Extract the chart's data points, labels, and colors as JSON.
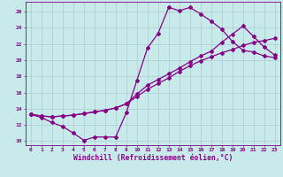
{
  "background_color": "#c8eaea",
  "grid_color": "#aacccc",
  "line_color": "#880088",
  "marker": "D",
  "markersize": 2.0,
  "linewidth": 0.9,
  "xlabel": "Windchill (Refroidissement éolien,°C)",
  "xlim": [
    -0.5,
    23.5
  ],
  "ylim": [
    9.5,
    27.2
  ],
  "xticks": [
    0,
    1,
    2,
    3,
    4,
    5,
    6,
    7,
    8,
    9,
    10,
    11,
    12,
    13,
    14,
    15,
    16,
    17,
    18,
    19,
    20,
    21,
    22,
    23
  ],
  "yticks": [
    10,
    12,
    14,
    16,
    18,
    20,
    22,
    24,
    26
  ],
  "curve1_x": [
    0,
    1,
    2,
    3,
    4,
    5,
    6,
    7,
    8,
    9,
    10,
    11,
    12,
    13,
    14,
    15,
    16,
    17,
    18,
    19,
    20,
    21,
    22,
    23
  ],
  "curve1_y": [
    13.3,
    12.9,
    12.3,
    11.8,
    11.0,
    10.1,
    10.5,
    10.5,
    10.5,
    13.5,
    17.5,
    21.5,
    23.3,
    26.5,
    26.1,
    26.5,
    25.7,
    24.8,
    23.8,
    22.3,
    21.2,
    21.0,
    20.5,
    20.3
  ],
  "curve2_x": [
    0,
    1,
    2,
    3,
    4,
    5,
    6,
    7,
    8,
    9,
    10,
    11,
    12,
    13,
    14,
    15,
    16,
    17,
    18,
    19,
    20,
    21,
    22,
    23
  ],
  "curve2_y": [
    13.3,
    13.1,
    13.0,
    13.1,
    13.2,
    13.4,
    13.6,
    13.8,
    14.1,
    14.6,
    15.5,
    16.4,
    17.1,
    17.8,
    18.6,
    19.3,
    19.9,
    20.4,
    20.9,
    21.3,
    21.8,
    22.2,
    22.4,
    22.7
  ],
  "curve3_x": [
    0,
    1,
    2,
    3,
    4,
    5,
    6,
    7,
    8,
    9,
    10,
    11,
    12,
    13,
    14,
    15,
    16,
    17,
    18,
    19,
    20,
    21,
    22,
    23
  ],
  "curve3_y": [
    13.3,
    13.1,
    13.0,
    13.1,
    13.2,
    13.4,
    13.6,
    13.8,
    14.1,
    14.6,
    15.8,
    16.9,
    17.6,
    18.3,
    19.0,
    19.8,
    20.5,
    21.1,
    22.2,
    23.2,
    24.2,
    22.9,
    21.6,
    20.6
  ],
  "tick_color": "#880088",
  "tick_fontsize": 4.5,
  "xlabel_fontsize": 5.8,
  "xlabel_color": "#880088"
}
